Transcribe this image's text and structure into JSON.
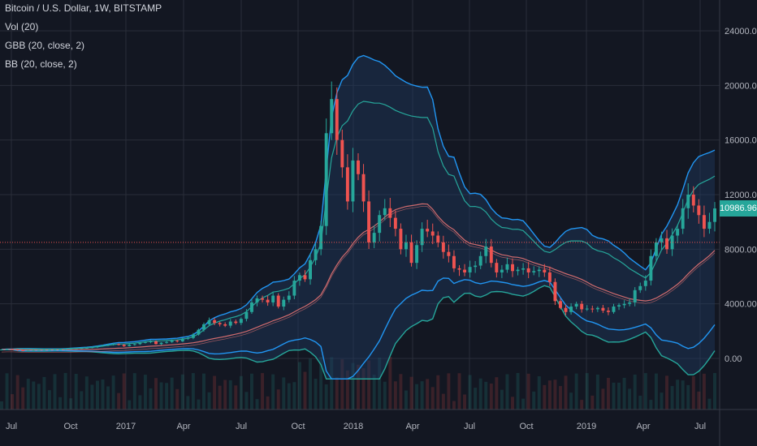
{
  "header": {
    "symbol_title": "Bitcoin / U.S. Dollar, 1W, BITSTAMP",
    "indicators": [
      "Vol (20)",
      "GBB (20, close, 2)",
      "BB (20, close, 2)"
    ]
  },
  "price_badge": {
    "value": "10986.96",
    "color": "#26a69a"
  },
  "colors": {
    "background": "#131722",
    "grid": "#2a2e39",
    "up": "#26a69a",
    "down": "#ef5350",
    "bb_line": "#2196f3",
    "gbb_line": "#26a69a",
    "basis": "#e57373",
    "fill": "#1e3a5f",
    "axis_text": "#b2b5be",
    "hline": "#ef5350"
  },
  "chart_data": {
    "type": "candlestick",
    "title": "Bitcoin / U.S. Dollar, 1W, BITSTAMP",
    "y_axis": {
      "ticks": [
        "24000.00",
        "20000.00",
        "16000.00",
        "12000.00",
        "8000.00",
        "4000.00",
        "0.00"
      ],
      "tick_values": [
        24000,
        20000,
        16000,
        12000,
        8000,
        4000,
        0
      ],
      "range": [
        -2000,
        26000
      ],
      "position": "right"
    },
    "x_axis": {
      "ticks": [
        "Jul",
        "Oct",
        "2017",
        "Apr",
        "Jul",
        "Oct",
        "2018",
        "Apr",
        "Jul",
        "Oct",
        "2019",
        "Apr",
        "Jul"
      ],
      "range": [
        "2016-06",
        "2019-08"
      ]
    },
    "horizontal_line": 8500,
    "last_price": 10986.96,
    "weekly_close": [
      650,
      670,
      660,
      600,
      580,
      590,
      600,
      610,
      620,
      630,
      640,
      650,
      700,
      720,
      740,
      760,
      780,
      820,
      900,
      960,
      1000,
      1050,
      1000,
      900,
      1000,
      1050,
      1150,
      1200,
      1250,
      1050,
      1150,
      1200,
      1300,
      1250,
      1450,
      1500,
      1750,
      2100,
      2500,
      2800,
      2600,
      2500,
      2400,
      2700,
      2600,
      2900,
      3400,
      4100,
      4400,
      4300,
      4100,
      4600,
      3800,
      4300,
      4600,
      5700,
      6100,
      5800,
      7200,
      8000,
      9700,
      16500,
      19000,
      16000,
      14000,
      11500,
      14500,
      13500,
      11500,
      8500,
      9200,
      10500,
      11000,
      10300,
      9500,
      8000,
      8500,
      7000,
      8300,
      9500,
      9300,
      9000,
      8500,
      7800,
      7500,
      6600,
      6500,
      6300,
      6700,
      6800,
      7500,
      8200,
      7000,
      6300,
      6500,
      6900,
      6400,
      6500,
      6600,
      6300,
      6400,
      6500,
      6300,
      5600,
      4200,
      3700,
      3400,
      3800,
      4000,
      3600,
      3650,
      3600,
      3700,
      3500,
      3400,
      3800,
      3900,
      4000,
      4100,
      5000,
      5300,
      5700,
      7500,
      8500,
      8800,
      8000,
      9000,
      9500,
      11000,
      12000,
      11200,
      10500,
      9500,
      10000,
      10987
    ]
  }
}
